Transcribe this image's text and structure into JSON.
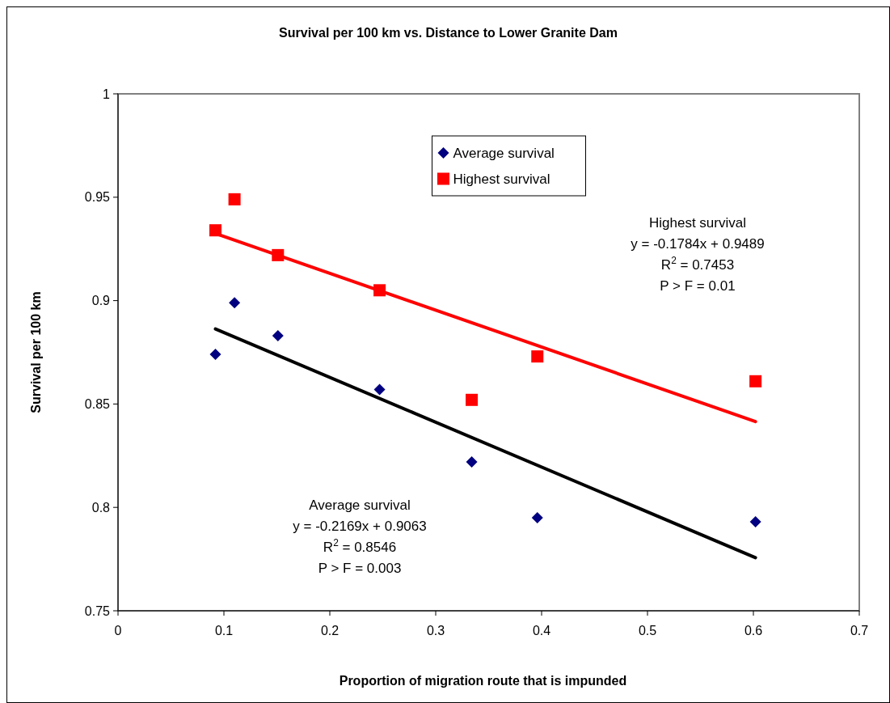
{
  "chart_data": {
    "type": "scatter",
    "title": "Survival per 100 km vs. Distance to Lower Granite Dam",
    "xlabel": "Proportion of migration route that is impunded",
    "ylabel": "Survival per 100 km",
    "xlim": [
      0,
      0.7
    ],
    "xticks": [
      0,
      0.1,
      0.2,
      0.3,
      0.4,
      0.5,
      0.6,
      0.7
    ],
    "ylim": [
      0.75,
      1
    ],
    "yticks": [
      0.75,
      0.8,
      0.85,
      0.9,
      0.95,
      1
    ],
    "grid": false,
    "legend": "top",
    "series": [
      {
        "name": "Average survival",
        "color": "#000080",
        "marker": "diamond",
        "x": [
          0.092,
          0.11,
          0.151,
          0.247,
          0.334,
          0.396,
          0.602
        ],
        "values": [
          0.874,
          0.899,
          0.883,
          0.857,
          0.822,
          0.795,
          0.793
        ]
      },
      {
        "name": "Highest survival",
        "color": "#ff0000",
        "marker": "square",
        "x": [
          0.092,
          0.11,
          0.151,
          0.247,
          0.334,
          0.396,
          0.602
        ],
        "values": [
          0.934,
          0.949,
          0.922,
          0.905,
          0.852,
          0.873,
          0.861
        ]
      },
      {
        "type": "line",
        "color": "#ff0000",
        "marker": "none",
        "x": [
          0.092,
          0.602
        ],
        "values": [
          0.9325,
          0.8415
        ]
      },
      {
        "type": "line",
        "color": "#000000",
        "marker": "none",
        "x": [
          0.092,
          0.602
        ],
        "values": [
          0.8863,
          0.7757
        ]
      }
    ],
    "annotations": [
      "Highest survival\ny = -0.1784x + 0.9489\nR$^{2}$ = 0.7453\nP > F = 0.01",
      "Average survival\ny = -0.2169x + 0.9063\nR$^{2}$ = 0.8546\nP > F = 0.003"
    ]
  }
}
